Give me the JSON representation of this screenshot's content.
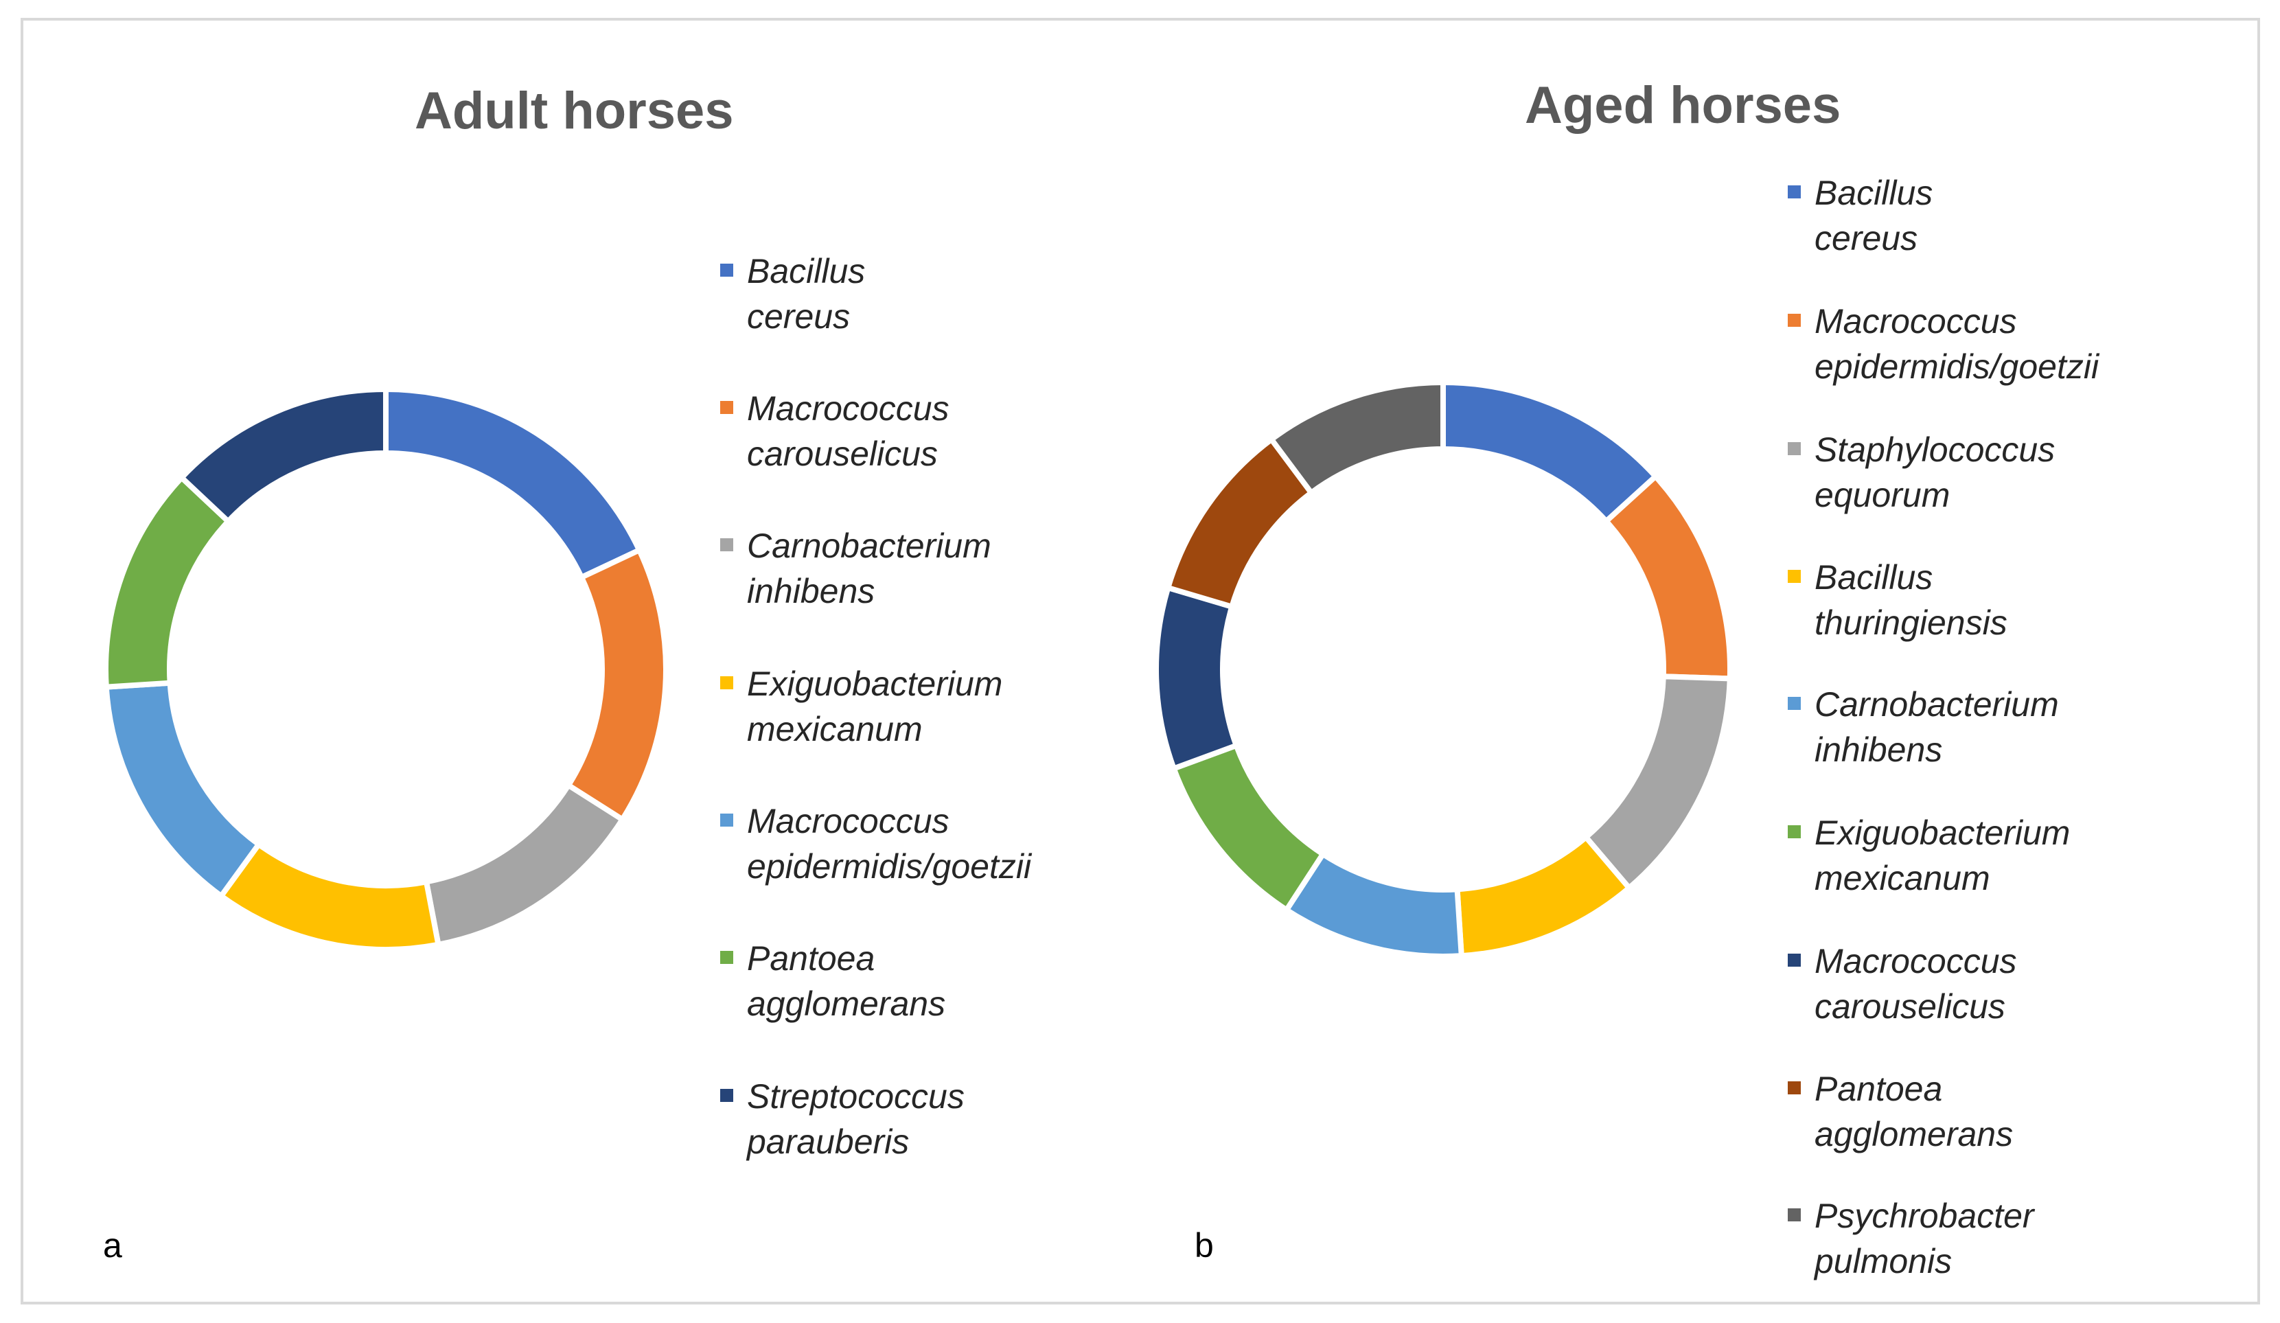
{
  "chart_data": [
    {
      "type": "donut",
      "panel_label": "a",
      "title": "Adult horses",
      "legend_position": "right",
      "categories": [
        "Bacillus cereus",
        "Macrococcus\ncarouselicus",
        "Carnobacterium\ninhibens",
        "Exiguobacterium\nmexicanum",
        "Macrococcus\nepidermidis/goetzii",
        "Pantoea agglomerans",
        "Streptococcus\nparauberis"
      ],
      "values": [
        18,
        16,
        13,
        13,
        14,
        13,
        13
      ],
      "colors": [
        "#4472C4",
        "#ED7D31",
        "#A5A5A5",
        "#FFC000",
        "#5B9BD5",
        "#70AD47",
        "#264478"
      ]
    },
    {
      "type": "donut",
      "panel_label": "b",
      "title": "Aged horses",
      "legend_position": "right",
      "categories": [
        "Bacillus cereus",
        "Macrococcus\nepidermidis/goetzii",
        "Staphylococcus equorum",
        "Bacillus thuringiensis",
        "Carnobacterium inhibens",
        "Exiguobacterium\nmexicanum",
        "Macrococcus\ncarouselicus",
        "Pantoea agglomerans",
        "Psychrobacter pulmonis"
      ],
      "values": [
        13,
        12,
        13,
        10,
        10,
        10,
        10,
        10,
        10
      ],
      "colors": [
        "#4472C4",
        "#ED7D31",
        "#A5A5A5",
        "#FFC000",
        "#5B9BD5",
        "#70AD47",
        "#264478",
        "#9E480E",
        "#636363"
      ]
    }
  ]
}
